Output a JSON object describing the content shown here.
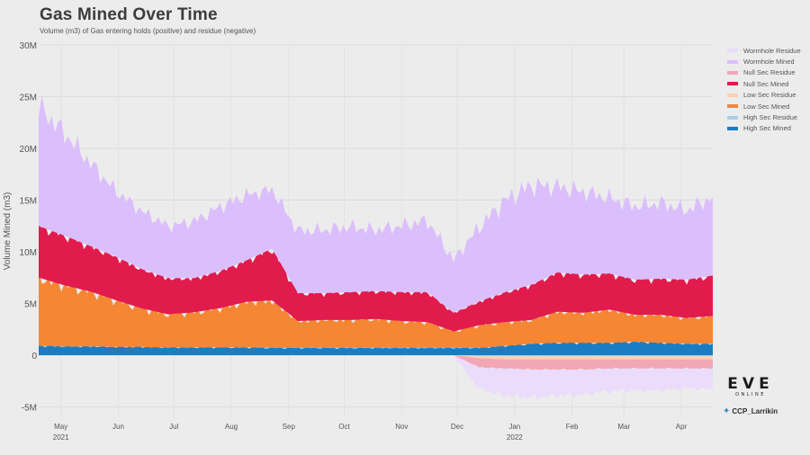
{
  "title": "Gas Mined Over Time",
  "subtitle": "Volume (m3) of Gas entering holds (positive) and residue (negative)",
  "logo": {
    "main": "EVE",
    "sub": "ONLINE"
  },
  "twitter": {
    "icon": "twitter-bird-icon",
    "handle": "CCP_Larrikin"
  },
  "chart_data": {
    "type": "area",
    "title": "Gas Mined Over Time",
    "subtitle": "Volume (m3) of Gas entering holds (positive) and residue (negative)",
    "xlabel": "",
    "ylabel": "Volume Mined (m3)",
    "ylim": [
      -6000000,
      30000000
    ],
    "yticks": [
      -5000000,
      0,
      5000000,
      10000000,
      15000000,
      20000000,
      25000000,
      30000000
    ],
    "ytick_labels": [
      "-5M",
      "0",
      "5M",
      "10M",
      "15M",
      "20M",
      "25M",
      "30M"
    ],
    "x_range": [
      "2021-04-19",
      "2022-04-18"
    ],
    "x_ticks": [
      {
        "date": "2021-05-01",
        "label": "May",
        "year": "2021"
      },
      {
        "date": "2021-06-01",
        "label": "Jun",
        "year": ""
      },
      {
        "date": "2021-07-01",
        "label": "Jul",
        "year": ""
      },
      {
        "date": "2021-08-01",
        "label": "Aug",
        "year": ""
      },
      {
        "date": "2021-09-01",
        "label": "Sep",
        "year": ""
      },
      {
        "date": "2021-10-01",
        "label": "Oct",
        "year": ""
      },
      {
        "date": "2021-11-01",
        "label": "Nov",
        "year": ""
      },
      {
        "date": "2021-12-01",
        "label": "Dec",
        "year": ""
      },
      {
        "date": "2022-01-01",
        "label": "Jan",
        "year": "2022"
      },
      {
        "date": "2022-02-01",
        "label": "Feb",
        "year": ""
      },
      {
        "date": "2022-03-01",
        "label": "Mar",
        "year": ""
      },
      {
        "date": "2022-04-01",
        "label": "Apr",
        "year": ""
      }
    ],
    "grid": true,
    "legend_position": "right",
    "stacking": "positive series stacked upward (High Sec, Low Sec, Null Sec, Wormhole); residue series stacked downward",
    "x": [
      "2021-04-19",
      "2021-05-03",
      "2021-05-17",
      "2021-05-31",
      "2021-06-14",
      "2021-06-28",
      "2021-07-12",
      "2021-07-26",
      "2021-08-09",
      "2021-08-23",
      "2021-09-06",
      "2021-09-20",
      "2021-10-04",
      "2021-10-18",
      "2021-11-01",
      "2021-11-15",
      "2021-11-29",
      "2021-12-13",
      "2021-12-27",
      "2022-01-10",
      "2022-01-24",
      "2022-02-07",
      "2022-02-21",
      "2022-03-07",
      "2022-03-21",
      "2022-04-04",
      "2022-04-18"
    ],
    "series": [
      {
        "name": "High Sec Mined",
        "color": "#1a7dc4",
        "sign": "positive",
        "values": [
          900000,
          850000,
          850000,
          800000,
          800000,
          750000,
          750000,
          750000,
          750000,
          700000,
          700000,
          700000,
          700000,
          700000,
          700000,
          700000,
          700000,
          700000,
          900000,
          1100000,
          1200000,
          1200000,
          1200000,
          1300000,
          1200000,
          1100000,
          1100000
        ]
      },
      {
        "name": "Low Sec Mined",
        "color": "#f58634",
        "sign": "positive",
        "values": [
          6600000,
          5900000,
          5300000,
          4500000,
          3700000,
          3200000,
          3400000,
          3800000,
          4400000,
          4600000,
          2600000,
          2700000,
          2700000,
          2800000,
          2600000,
          2500000,
          1600000,
          2200000,
          2300000,
          2300000,
          3000000,
          2900000,
          3200000,
          2600000,
          2700000,
          2500000,
          2700000
        ]
      },
      {
        "name": "Null Sec Mined",
        "color": "#e21b4d",
        "sign": "positive",
        "values": [
          5000000,
          4800000,
          4400000,
          4200000,
          3800000,
          3500000,
          3300000,
          3600000,
          4000000,
          5000000,
          2700000,
          2600000,
          2700000,
          2700000,
          2800000,
          2900000,
          1800000,
          2300000,
          2900000,
          3400000,
          3800000,
          3700000,
          3500000,
          3400000,
          3500000,
          3700000,
          3900000
        ]
      },
      {
        "name": "Wormhole Mined",
        "color": "#dbbefc",
        "sign": "positive",
        "values": [
          11500000,
          9900000,
          8000000,
          6300000,
          5600000,
          5000000,
          5500000,
          6200000,
          6300000,
          5700000,
          6000000,
          6100000,
          6300000,
          5900000,
          6400000,
          6900000,
          5100000,
          7200000,
          8900000,
          9600000,
          8300000,
          8000000,
          7300000,
          7100000,
          7300000,
          6700000,
          7600000
        ]
      },
      {
        "name": "High Sec Residue",
        "color": "#a8cfe8",
        "sign": "negative",
        "values": [
          0,
          0,
          0,
          0,
          0,
          0,
          0,
          0,
          0,
          0,
          0,
          0,
          0,
          0,
          0,
          0,
          0,
          100000,
          100000,
          100000,
          100000,
          100000,
          100000,
          100000,
          100000,
          100000,
          100000
        ]
      },
      {
        "name": "Low Sec Residue",
        "color": "#fbd1b0",
        "sign": "negative",
        "values": [
          0,
          0,
          0,
          0,
          0,
          0,
          0,
          0,
          0,
          0,
          0,
          0,
          0,
          0,
          0,
          0,
          0,
          200000,
          300000,
          300000,
          300000,
          300000,
          300000,
          300000,
          300000,
          300000,
          300000
        ]
      },
      {
        "name": "Null Sec Residue",
        "color": "#f2a7b6",
        "sign": "negative",
        "values": [
          0,
          0,
          0,
          0,
          0,
          0,
          0,
          0,
          0,
          0,
          0,
          0,
          0,
          0,
          0,
          0,
          0,
          900000,
          900000,
          1000000,
          1000000,
          1000000,
          900000,
          900000,
          900000,
          900000,
          900000
        ]
      },
      {
        "name": "Wormhole Residue",
        "color": "#eadcfa",
        "sign": "negative",
        "values": [
          0,
          0,
          0,
          0,
          0,
          0,
          0,
          0,
          0,
          0,
          0,
          0,
          0,
          0,
          0,
          0,
          0,
          2100000,
          2600000,
          2700000,
          2500000,
          2400000,
          2200000,
          2100000,
          2100000,
          1900000,
          2000000
        ]
      }
    ],
    "legend": [
      {
        "name": "Wormhole Residue",
        "color": "#eadcfa"
      },
      {
        "name": "Wormhole Mined",
        "color": "#dbbefc"
      },
      {
        "name": "Null Sec Residue",
        "color": "#f2a7b6"
      },
      {
        "name": "Null Sec Mined",
        "color": "#e21b4d"
      },
      {
        "name": "Low Sec Residue",
        "color": "#fbd1b0"
      },
      {
        "name": "Low Sec Mined",
        "color": "#f58634"
      },
      {
        "name": "High Sec Residue",
        "color": "#a8cfe8"
      },
      {
        "name": "High Sec Mined",
        "color": "#1a7dc4"
      }
    ]
  }
}
